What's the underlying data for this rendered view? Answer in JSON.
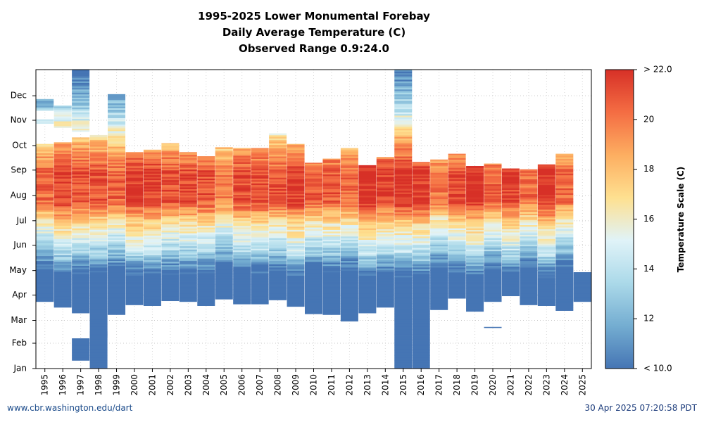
{
  "chart_data": {
    "type": "heatmap",
    "title_lines": [
      "1995-2025 Lower Monumental Forebay",
      "Daily Average Temperature (C)",
      "Observed Range 0.9:24.0"
    ],
    "x_categories": [
      "1995",
      "1996",
      "1997",
      "1998",
      "1999",
      "2000",
      "2001",
      "2002",
      "2003",
      "2004",
      "2005",
      "2006",
      "2007",
      "2008",
      "2009",
      "2010",
      "2011",
      "2012",
      "2013",
      "2014",
      "2015",
      "2016",
      "2017",
      "2018",
      "2019",
      "2020",
      "2021",
      "2022",
      "2023",
      "2024",
      "2025"
    ],
    "y_tick_labels": [
      "Jan",
      "Feb",
      "Mar",
      "Apr",
      "May",
      "Jun",
      "Jul",
      "Aug",
      "Sep",
      "Oct",
      "Nov",
      "Dec"
    ],
    "y_tick_days": [
      0,
      31,
      59,
      90,
      120,
      151,
      181,
      212,
      243,
      273,
      304,
      334
    ],
    "y_range_days": [
      0,
      366
    ],
    "grid": true,
    "colorbar": {
      "label": "Temperature Scale (C)",
      "tick_labels": [
        "< 10.0",
        "12",
        "14",
        "16",
        "18",
        "20",
        "> 22.0"
      ],
      "range": [
        10,
        22
      ],
      "colors": [
        "#4575b4",
        "#74add1",
        "#abd9e9",
        "#e0f3f8",
        "#fee090",
        "#fdae61",
        "#f46d43",
        "#d73027"
      ]
    },
    "year_coverage": [
      {
        "year": "1995",
        "start": 82,
        "end": 275,
        "extra": [
          [
            300,
            305
          ],
          [
            316,
            330
          ]
        ]
      },
      {
        "year": "1996",
        "start": 75,
        "end": 277,
        "extra": [
          [
            295,
            322
          ]
        ]
      },
      {
        "year": "1997",
        "start": 68,
        "end": 283,
        "extra": [
          [
            10,
            37
          ],
          [
            290,
            366
          ]
        ]
      },
      {
        "year": "1998",
        "start": 38,
        "end": 286,
        "extra": [
          [
            0,
            46
          ]
        ]
      },
      {
        "year": "1999",
        "start": 66,
        "end": 277,
        "extra": [
          [
            277,
            336
          ]
        ]
      },
      {
        "year": "2000",
        "start": 78,
        "end": 265
      },
      {
        "year": "2001",
        "start": 77,
        "end": 268
      },
      {
        "year": "2002",
        "start": 83,
        "end": 276
      },
      {
        "year": "2003",
        "start": 82,
        "end": 265
      },
      {
        "year": "2004",
        "start": 77,
        "end": 260
      },
      {
        "year": "2005",
        "start": 85,
        "end": 271
      },
      {
        "year": "2006",
        "start": 79,
        "end": 270
      },
      {
        "year": "2007",
        "start": 79,
        "end": 270
      },
      {
        "year": "2008",
        "start": 84,
        "end": 288
      },
      {
        "year": "2009",
        "start": 76,
        "end": 275
      },
      {
        "year": "2010",
        "start": 67,
        "end": 252
      },
      {
        "year": "2011",
        "start": 66,
        "end": 257
      },
      {
        "year": "2012",
        "start": 58,
        "end": 270
      },
      {
        "year": "2013",
        "start": 68,
        "end": 249
      },
      {
        "year": "2014",
        "start": 75,
        "end": 259
      },
      {
        "year": "2015",
        "start": 0,
        "end": 366
      },
      {
        "year": "2016",
        "start": 0,
        "end": 253
      },
      {
        "year": "2017",
        "start": 72,
        "end": 256
      },
      {
        "year": "2018",
        "start": 86,
        "end": 263
      },
      {
        "year": "2019",
        "start": 70,
        "end": 248
      },
      {
        "year": "2020",
        "start": 82,
        "end": 251,
        "extra": [
          [
            50,
            51
          ]
        ]
      },
      {
        "year": "2021",
        "start": 89,
        "end": 245
      },
      {
        "year": "2022",
        "start": 78,
        "end": 244
      },
      {
        "year": "2023",
        "start": 77,
        "end": 250
      },
      {
        "year": "2024",
        "start": 71,
        "end": 263
      },
      {
        "year": "2025",
        "start": 82,
        "end": 118
      }
    ]
  },
  "footer": {
    "left": "www.cbr.washington.edu/dart",
    "right": "30 Apr 2025 07:20:58 PDT"
  }
}
